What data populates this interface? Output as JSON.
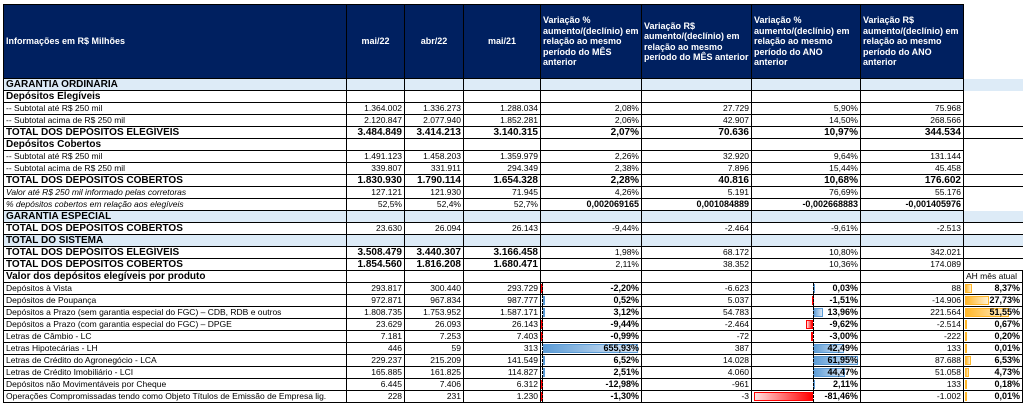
{
  "header": {
    "title": "Informações em R$ Milhões",
    "col1": "mai/22",
    "col2": "abr/22",
    "col3": "mai/21",
    "col4": "Variação % aumento/(declínio) em relação ao mesmo período do MÊS anterior",
    "col5": "Variação R$ aumento/(declínio) em relação ao mesmo período do MÊS anterior",
    "col6": "Variação % aumento/(declínio) em relação ao mesmo período do ANO anterior",
    "col7": "Variação R$ aumento/(declínio) em relação ao mesmo período do ANO anterior",
    "ah_label": "AH mês atual"
  },
  "rows": [
    {
      "type": "section",
      "label": "GARANTIA ORDINÁRIA",
      "values": [
        "",
        "",
        "",
        "",
        "",
        "",
        ""
      ]
    },
    {
      "type": "sub",
      "label": "Depósitos Elegíveis",
      "values": [
        "",
        "",
        "",
        "",
        "",
        "",
        ""
      ]
    },
    {
      "type": "item",
      "label": "-- Subtotal até R$ 250 mil",
      "values": [
        "1.364.002",
        "1.336.273",
        "1.288.034",
        "2,08%",
        "27.729",
        "5,90%",
        "75.968"
      ]
    },
    {
      "type": "item",
      "label": "-- Subtotal acima de R$ 250 mil",
      "values": [
        "2.120.847",
        "2.077.940",
        "1.852.281",
        "2,06%",
        "42.907",
        "14,50%",
        "268.566"
      ]
    },
    {
      "type": "total",
      "label": "TOTAL DOS DEPÓSITOS ELEGÍVEIS",
      "values": [
        "3.484.849",
        "3.414.213",
        "3.140.315",
        "2,07%",
        "70.636",
        "10,97%",
        "344.534"
      ]
    },
    {
      "type": "sub",
      "label": "Depósitos Cobertos",
      "values": [
        "",
        "",
        "",
        "",
        "",
        "",
        ""
      ]
    },
    {
      "type": "item",
      "label": "-- Subtotal até R$ 250 mil",
      "values": [
        "1.491.123",
        "1.458.203",
        "1.359.979",
        "2,26%",
        "32.920",
        "9,64%",
        "131.144"
      ]
    },
    {
      "type": "item",
      "label": "-- Subtotal acima de R$ 250 mil",
      "values": [
        "339.807",
        "331.911",
        "294.349",
        "2,38%",
        "7.896",
        "15,44%",
        "45.458"
      ]
    },
    {
      "type": "total",
      "label": "TOTAL DOS DEPÓSITOS COBERTOS",
      "values": [
        "1.830.930",
        "1.790.114",
        "1.654.328",
        "2,28%",
        "40.816",
        "10,68%",
        "176.602"
      ]
    },
    {
      "type": "italic",
      "label": "Valor até R$ 250 mil informado pelas corretoras",
      "values": [
        "127.121",
        "121.930",
        "71.945",
        "4,26%",
        "5.191",
        "76,69%",
        "55.176"
      ]
    },
    {
      "type": "italicbold",
      "label": "% depósitos cobertos em relação aos elegíveis",
      "values": [
        "52,5%",
        "52,4%",
        "52,7%",
        "0,002069165",
        "0,001084889",
        "-0,002668883",
        "-0,001405976"
      ]
    },
    {
      "type": "section",
      "label": "GARANTIA ESPECIAL",
      "values": [
        "",
        "",
        "",
        "",
        "",
        "",
        ""
      ]
    },
    {
      "type": "totalplain",
      "label": "TOTAL DOS DEPÓSITOS COBERTOS",
      "values": [
        "23.630",
        "26.094",
        "26.143",
        "-9,44%",
        "-2.464",
        "-9,61%",
        "-2.513"
      ]
    },
    {
      "type": "section",
      "label": "TOTAL DO SISTEMA",
      "values": [
        "",
        "",
        "",
        "",
        "",
        "",
        ""
      ]
    },
    {
      "type": "totalmix",
      "label": "TOTAL DOS DEPÓSITOS ELEGÍVEIS",
      "values": [
        "3.508.479",
        "3.440.307",
        "3.166.458",
        "1,98%",
        "68.172",
        "10,80%",
        "342.021"
      ]
    },
    {
      "type": "totalmix",
      "label": "TOTAL DOS DEPÓSITOS COBERTOS",
      "values": [
        "1.854.560",
        "1.816.208",
        "1.680.471",
        "2,11%",
        "38.352",
        "10,36%",
        "174.089"
      ]
    },
    {
      "type": "subah",
      "label": "Valor dos depósitos elegíveis por produto",
      "values": [
        "",
        "",
        "",
        "",
        "",
        "",
        ""
      ]
    },
    {
      "type": "product",
      "label": "Depósitos à Vista",
      "values": [
        "293.817",
        "300.440",
        "293.729",
        "-2,20%",
        "-6.623",
        "0,03%",
        "88"
      ],
      "ah": "8,37%"
    },
    {
      "type": "product",
      "label": "Depósitos de Poupança",
      "values": [
        "972.871",
        "967.834",
        "987.777",
        "0,52%",
        "5.037",
        "-1,51%",
        "-14.906"
      ],
      "ah": "27,73%"
    },
    {
      "type": "product",
      "label": "Depósitos a Prazo (sem garantia especial do FGC) – CDB, RDB e outros",
      "values": [
        "1.808.735",
        "1.753.952",
        "1.587.171",
        "3,12%",
        "54.783",
        "13,96%",
        "221.564"
      ],
      "ah": "51,55%"
    },
    {
      "type": "product",
      "label": "Depósitos a Prazo (com garantia especial do FGC) – DPGE",
      "values": [
        "23.629",
        "26.093",
        "26.143",
        "-9,44%",
        "-2.464",
        "-9,62%",
        "-2.514"
      ],
      "ah": "0,67%"
    },
    {
      "type": "product",
      "label": "Letras de Câmbio - LC",
      "values": [
        "7.181",
        "7.253",
        "7.403",
        "-0,99%",
        "-72",
        "-3,00%",
        "-222"
      ],
      "ah": "0,20%"
    },
    {
      "type": "product",
      "label": "Letras Hipotecárias - LH",
      "values": [
        "446",
        "59",
        "313",
        "655,93%",
        "387",
        "42,49%",
        "133"
      ],
      "ah": "0,01%"
    },
    {
      "type": "product",
      "label": "Letras de Crédito do Agronegócio - LCA",
      "values": [
        "229.237",
        "215.209",
        "141.549",
        "6,52%",
        "14.028",
        "61,95%",
        "87.688"
      ],
      "ah": "6,53%"
    },
    {
      "type": "product",
      "label": "Letras de Crédito Imobiliário - LCI",
      "values": [
        "165.885",
        "161.825",
        "114.827",
        "2,51%",
        "4.060",
        "44,47%",
        "51.058"
      ],
      "ah": "4,73%"
    },
    {
      "type": "product",
      "label": "Depósitos não Movimentáveis por Cheque",
      "values": [
        "6.445",
        "7.406",
        "6.312",
        "-12,98%",
        "-961",
        "2,11%",
        "133"
      ],
      "ah": "0,18%"
    },
    {
      "type": "product",
      "label": "Operações Compromissadas tendo como Objeto Títulos de Emissão de Empresa lig.",
      "values": [
        "228",
        "231",
        "1.230",
        "-1,30%",
        "-3",
        "-81,46%",
        "-1.002"
      ],
      "ah": "0,01%"
    }
  ],
  "colors": {
    "header_bg": "#002060",
    "section_bg": "#DDEBF7",
    "bar_positive": "#5B9BD5",
    "bar_negative": "#FF0000",
    "bar_ah": "#FFB628"
  }
}
